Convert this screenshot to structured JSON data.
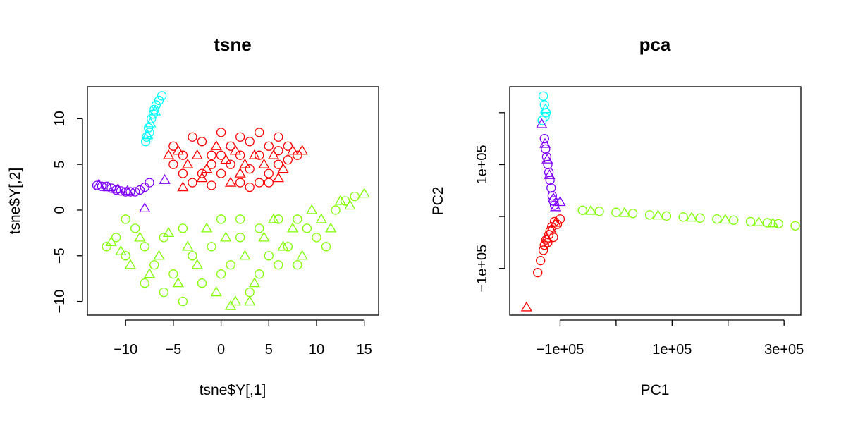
{
  "chart_data": [
    {
      "type": "scatter",
      "title": "tsne",
      "xlabel": "tsne$Y[,1]",
      "ylabel": "tsne$Y[,2]",
      "xlim": [
        -14,
        16.5
      ],
      "ylim": [
        -11.5,
        13.5
      ],
      "xticks": [
        -10,
        -5,
        0,
        5,
        10,
        15
      ],
      "xtick_labels": [
        "−10",
        "−5",
        "0",
        "5",
        "10",
        "15"
      ],
      "yticks": [
        -10,
        -5,
        0,
        5,
        10
      ],
      "ytick_labels": [
        "−10",
        "−5",
        "0",
        "5",
        "10"
      ],
      "grid": false,
      "legend": "none",
      "markers": [
        "circle",
        "triangle"
      ],
      "series": [
        {
          "color": "#FF0000",
          "shape": "circle",
          "points": [
            [
              -5,
              7
            ],
            [
              -4,
              6
            ],
            [
              -3,
              8
            ],
            [
              -2,
              7.5
            ],
            [
              -1,
              6
            ],
            [
              0,
              8.5
            ],
            [
              1,
              7
            ],
            [
              2,
              8
            ],
            [
              3,
              7.5
            ],
            [
              4,
              8.5
            ],
            [
              5,
              7
            ],
            [
              6,
              6.5
            ],
            [
              7,
              7
            ],
            [
              8,
              6
            ],
            [
              -4,
              4
            ],
            [
              -3,
              3
            ],
            [
              -2,
              4
            ],
            [
              -1,
              5
            ],
            [
              0,
              4
            ],
            [
              1,
              5
            ],
            [
              2,
              3
            ],
            [
              3,
              4.5
            ],
            [
              4,
              3
            ],
            [
              5,
              4
            ],
            [
              6,
              5
            ],
            [
              7,
              5.5
            ],
            [
              -5,
              5
            ],
            [
              0,
              6
            ],
            [
              2,
              6
            ],
            [
              4,
              6
            ],
            [
              6,
              8
            ],
            [
              3,
              2.5
            ],
            [
              -1,
              2.7
            ],
            [
              5,
              3
            ]
          ]
        },
        {
          "color": "#FF0000",
          "shape": "triangle",
          "points": [
            [
              -4.5,
              6.5
            ],
            [
              -3.5,
              5
            ],
            [
              -2.5,
              6
            ],
            [
              -1.5,
              4.5
            ],
            [
              -0.5,
              7
            ],
            [
              0.5,
              5.5
            ],
            [
              1.5,
              6.5
            ],
            [
              2.5,
              5
            ],
            [
              3.5,
              6
            ],
            [
              4.5,
              5
            ],
            [
              5.5,
              6
            ],
            [
              6.5,
              4.5
            ],
            [
              7.5,
              6.5
            ],
            [
              -5.5,
              6
            ],
            [
              -4,
              2.5
            ],
            [
              2,
              4
            ],
            [
              -2,
              3.5
            ],
            [
              1,
              3
            ],
            [
              6,
              3.5
            ],
            [
              8.5,
              6.5
            ]
          ]
        },
        {
          "color": "#00FFFF",
          "shape": "circle",
          "points": [
            [
              -6.2,
              12.5
            ],
            [
              -6.5,
              12
            ],
            [
              -7,
              11
            ],
            [
              -7.3,
              10
            ],
            [
              -7.6,
              9
            ],
            [
              -7.8,
              8
            ],
            [
              -7.5,
              8.5
            ],
            [
              -7.9,
              7.5
            ],
            [
              -6.8,
              11.5
            ],
            [
              -7.1,
              10.5
            ]
          ]
        },
        {
          "color": "#00FFFF",
          "shape": "triangle",
          "points": [
            [
              -7.4,
              9.5
            ],
            [
              -7.7,
              8.2
            ],
            [
              -6.9,
              10.8
            ]
          ]
        },
        {
          "color": "#8000FF",
          "shape": "circle",
          "points": [
            [
              -13,
              2.7
            ],
            [
              -12.5,
              2.6
            ],
            [
              -12,
              2.6
            ],
            [
              -11.5,
              2.4
            ],
            [
              -11,
              2.2
            ],
            [
              -10.5,
              2.1
            ],
            [
              -10,
              2
            ],
            [
              -9.5,
              2
            ],
            [
              -9,
              2
            ],
            [
              -8.5,
              2.2
            ],
            [
              -8,
              2.5
            ],
            [
              -7.5,
              3
            ]
          ]
        },
        {
          "color": "#8000FF",
          "shape": "triangle",
          "points": [
            [
              -12.8,
              2.8
            ],
            [
              -11.8,
              2.5
            ],
            [
              -10.8,
              2.3
            ],
            [
              -9.8,
              2.1
            ],
            [
              -8,
              0.2
            ],
            [
              -5.9,
              3.3
            ]
          ]
        },
        {
          "color": "#80FF00",
          "shape": "circle",
          "points": [
            [
              -12,
              -4
            ],
            [
              -11,
              -3
            ],
            [
              -10,
              -5
            ],
            [
              -9,
              -2
            ],
            [
              -8,
              -4
            ],
            [
              -7,
              -6
            ],
            [
              -6,
              -3
            ],
            [
              -5,
              -7
            ],
            [
              -4,
              -2
            ],
            [
              -3,
              -5
            ],
            [
              -2,
              -8
            ],
            [
              -1,
              -4
            ],
            [
              0,
              -1
            ],
            [
              1,
              -6
            ],
            [
              2,
              -3
            ],
            [
              3,
              -9
            ],
            [
              4,
              -2
            ],
            [
              5,
              -5
            ],
            [
              6,
              -1
            ],
            [
              7,
              -4
            ],
            [
              8,
              -6
            ],
            [
              9,
              -2
            ],
            [
              10,
              -3
            ],
            [
              11,
              -4
            ],
            [
              12,
              0
            ],
            [
              13,
              1
            ],
            [
              14,
              1.5
            ],
            [
              -10,
              -1
            ],
            [
              -8,
              -8
            ],
            [
              -6,
              -9
            ],
            [
              -4,
              -10
            ],
            [
              0,
              -7
            ],
            [
              4,
              -7
            ],
            [
              6,
              -6
            ],
            [
              2,
              -1
            ],
            [
              8,
              -1
            ]
          ]
        },
        {
          "color": "#80FF00",
          "shape": "triangle",
          "points": [
            [
              -11.5,
              -3.5
            ],
            [
              -10.5,
              -4.5
            ],
            [
              -9.5,
              -6
            ],
            [
              -8.5,
              -3
            ],
            [
              -7.5,
              -7
            ],
            [
              -6.5,
              -5
            ],
            [
              -5.5,
              -2.5
            ],
            [
              -4.5,
              -8
            ],
            [
              -3.5,
              -4
            ],
            [
              -2.5,
              -6
            ],
            [
              -1.5,
              -2
            ],
            [
              -0.5,
              -9
            ],
            [
              0.5,
              -3
            ],
            [
              1.5,
              -10
            ],
            [
              2.5,
              -5
            ],
            [
              3.5,
              -8
            ],
            [
              4.5,
              -3
            ],
            [
              5.5,
              -1
            ],
            [
              6.5,
              -4
            ],
            [
              7.5,
              -2
            ],
            [
              8.5,
              -5
            ],
            [
              9.5,
              0
            ],
            [
              10.5,
              -1
            ],
            [
              11.5,
              -2
            ],
            [
              12.5,
              1
            ],
            [
              13.5,
              0.5
            ],
            [
              15,
              1.8
            ],
            [
              1,
              -10.5
            ],
            [
              3,
              -10
            ]
          ]
        }
      ]
    },
    {
      "type": "scatter",
      "title": "pca",
      "xlabel": "PC1",
      "ylabel": "PC2",
      "xlim": [
        -190000,
        330000
      ],
      "ylim": [
        -190000,
        250000
      ],
      "xticks": [
        -100000,
        0,
        100000,
        200000,
        300000
      ],
      "xtick_labels": [
        "−1e+05",
        "",
        "1e+05",
        "",
        "3e+05"
      ],
      "yticks": [
        -100000,
        0,
        100000,
        200000
      ],
      "ytick_labels": [
        "−1e+05",
        "",
        "1e+05",
        ""
      ],
      "grid": false,
      "legend": "none",
      "markers": [
        "circle",
        "triangle"
      ],
      "series": [
        {
          "color": "#FF0000",
          "shape": "circle",
          "points": [
            [
              -115000,
              -20000
            ],
            [
              -120000,
              -35000
            ],
            [
              -125000,
              -45000
            ],
            [
              -128000,
              -55000
            ],
            [
              -130000,
              -65000
            ],
            [
              -110000,
              -10000
            ],
            [
              -100000,
              -5000
            ],
            [
              -118000,
              -28000
            ],
            [
              -122000,
              -50000
            ],
            [
              -105000,
              -15000
            ],
            [
              -112000,
              -40000
            ],
            [
              -135000,
              -85000
            ],
            [
              -140000,
              -108000
            ]
          ]
        },
        {
          "color": "#FF0000",
          "shape": "triangle",
          "points": [
            [
              -116000,
              -25000
            ],
            [
              -108000,
              -12000
            ],
            [
              -124000,
              -42000
            ],
            [
              -160000,
              -175000
            ]
          ]
        },
        {
          "color": "#00FFFF",
          "shape": "circle",
          "points": [
            [
              -130000,
              232000
            ],
            [
              -128000,
              215000
            ],
            [
              -125000,
              200000
            ],
            [
              -127000,
              192000
            ],
            [
              -132000,
              185000
            ]
          ]
        },
        {
          "color": "#00FFFF",
          "shape": "triangle",
          "points": [
            [
              -126000,
              207000
            ]
          ]
        },
        {
          "color": "#8000FF",
          "shape": "circle",
          "points": [
            [
              -128000,
              150000
            ],
            [
              -126000,
              130000
            ],
            [
              -124000,
              115000
            ],
            [
              -122000,
              100000
            ],
            [
              -120000,
              85000
            ],
            [
              -118000,
              70000
            ],
            [
              -116000,
              55000
            ],
            [
              -114000,
              40000
            ],
            [
              -112000,
              30000
            ],
            [
              -110000,
              22000
            ]
          ]
        },
        {
          "color": "#8000FF",
          "shape": "triangle",
          "points": [
            [
              -133000,
              178000
            ],
            [
              -127000,
              140000
            ],
            [
              -123000,
              110000
            ],
            [
              -119000,
              80000
            ],
            [
              -112000,
              35000
            ],
            [
              -108000,
              18000
            ],
            [
              -100000,
              28000
            ]
          ]
        },
        {
          "color": "#80FF00",
          "shape": "circle",
          "points": [
            [
              -60000,
              12000
            ],
            [
              -30000,
              10000
            ],
            [
              0,
              8000
            ],
            [
              30000,
              6000
            ],
            [
              60000,
              3000
            ],
            [
              90000,
              1000
            ],
            [
              120000,
              -1000
            ],
            [
              150000,
              -3000
            ],
            [
              180000,
              -5000
            ],
            [
              210000,
              -7000
            ],
            [
              240000,
              -10000
            ],
            [
              270000,
              -12000
            ],
            [
              290000,
              -14000
            ],
            [
              320000,
              -18000
            ]
          ]
        },
        {
          "color": "#80FF00",
          "shape": "triangle",
          "points": [
            [
              -45000,
              11000
            ],
            [
              15000,
              7000
            ],
            [
              75000,
              2000
            ],
            [
              135000,
              -2000
            ],
            [
              195000,
              -6000
            ],
            [
              255000,
              -11000
            ],
            [
              280000,
              -13000
            ]
          ]
        }
      ]
    }
  ]
}
